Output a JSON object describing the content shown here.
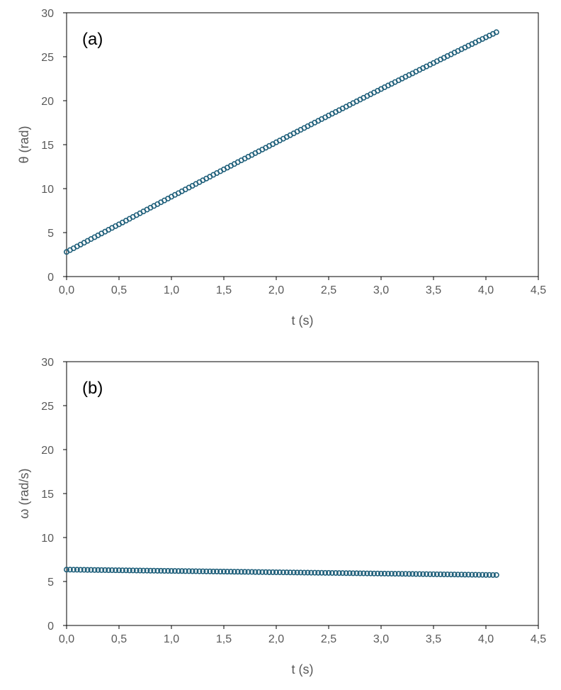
{
  "colors": {
    "marker": "#1f5f7a",
    "frame": "#000000",
    "text": "#595959"
  },
  "chart_data": [
    {
      "type": "scatter",
      "annotation": "(a)",
      "title": "",
      "xlabel": "t (s)",
      "ylabel": "θ (rad)",
      "xlim": [
        0,
        4.5
      ],
      "ylim": [
        0,
        30
      ],
      "xticks": [
        "0,0",
        "0,5",
        "1,0",
        "1,5",
        "2,0",
        "2,5",
        "3,0",
        "3,5",
        "4,0",
        "4,5"
      ],
      "yticks": [
        "0",
        "5",
        "10",
        "15",
        "20",
        "25",
        "30"
      ],
      "grid": false,
      "legend": "none",
      "series": [
        {
          "x": [
            0.0,
            0.033,
            0.067,
            0.1,
            0.133,
            0.167,
            0.2,
            0.233,
            0.267,
            0.3,
            0.333,
            0.367,
            0.4,
            0.433,
            0.467,
            0.5,
            0.533,
            0.567,
            0.6,
            0.633,
            0.667,
            0.7,
            0.733,
            0.767,
            0.8,
            0.833,
            0.867,
            0.9,
            0.933,
            0.967,
            1.0,
            1.033,
            1.067,
            1.1,
            1.133,
            1.167,
            1.2,
            1.233,
            1.267,
            1.3,
            1.333,
            1.367,
            1.4,
            1.433,
            1.467,
            1.5,
            1.533,
            1.567,
            1.6,
            1.633,
            1.667,
            1.7,
            1.733,
            1.767,
            1.8,
            1.833,
            1.867,
            1.9,
            1.933,
            1.967,
            2.0,
            2.033,
            2.067,
            2.1,
            2.133,
            2.167,
            2.2,
            2.233,
            2.267,
            2.3,
            2.333,
            2.367,
            2.4,
            2.433,
            2.467,
            2.5,
            2.533,
            2.567,
            2.6,
            2.633,
            2.667,
            2.7,
            2.733,
            2.767,
            2.8,
            2.833,
            2.867,
            2.9,
            2.933,
            2.967,
            3.0,
            3.033,
            3.067,
            3.1,
            3.133,
            3.167,
            3.2,
            3.233,
            3.267,
            3.3,
            3.333,
            3.367,
            3.4,
            3.433,
            3.467,
            3.5,
            3.533,
            3.567,
            3.6,
            3.633,
            3.667,
            3.7,
            3.733,
            3.767,
            3.8,
            3.833,
            3.867,
            3.9,
            3.933,
            3.967,
            4.0,
            4.033,
            4.067,
            4.1
          ],
          "y": [
            2.8,
            3.01,
            3.22,
            3.43,
            3.64,
            3.85,
            4.06,
            4.27,
            4.48,
            4.69,
            4.9,
            5.11,
            5.32,
            5.53,
            5.74,
            5.94,
            6.15,
            6.36,
            6.57,
            6.78,
            6.99,
            7.2,
            7.41,
            7.62,
            7.83,
            8.03,
            8.24,
            8.45,
            8.66,
            8.87,
            9.08,
            9.29,
            9.49,
            9.7,
            9.91,
            10.12,
            10.32,
            10.53,
            10.74,
            10.95,
            11.15,
            11.36,
            11.57,
            11.77,
            11.98,
            12.19,
            12.39,
            12.6,
            12.8,
            13.01,
            13.22,
            13.42,
            13.63,
            13.83,
            14.04,
            14.24,
            14.45,
            14.65,
            14.86,
            15.06,
            15.27,
            15.47,
            15.68,
            15.88,
            16.08,
            16.29,
            16.49,
            16.69,
            16.9,
            17.1,
            17.3,
            17.51,
            17.71,
            17.91,
            18.11,
            18.32,
            18.52,
            18.72,
            18.92,
            19.12,
            19.32,
            19.53,
            19.73,
            19.93,
            20.13,
            20.33,
            20.53,
            20.73,
            20.93,
            21.13,
            21.33,
            21.53,
            21.73,
            21.92,
            22.12,
            22.32,
            22.52,
            22.72,
            22.92,
            23.11,
            23.31,
            23.51,
            23.71,
            23.9,
            24.1,
            24.29,
            24.49,
            24.69,
            24.88,
            25.08,
            25.27,
            25.47,
            25.66,
            25.86,
            26.05,
            26.25,
            26.44,
            26.63,
            26.83,
            27.02,
            27.21,
            27.4,
            27.6,
            27.79
          ]
        }
      ]
    },
    {
      "type": "scatter",
      "annotation": "(b)",
      "title": "",
      "xlabel": "t (s)",
      "ylabel": "ω (rad/s)",
      "xlim": [
        0,
        4.5
      ],
      "ylim": [
        0,
        30
      ],
      "xticks": [
        "0,0",
        "0,5",
        "1,0",
        "1,5",
        "2,0",
        "2,5",
        "3,0",
        "3,5",
        "4,0",
        "4,5"
      ],
      "yticks": [
        "0",
        "5",
        "10",
        "15",
        "20",
        "25",
        "30"
      ],
      "grid": false,
      "legend": "none",
      "series": [
        {
          "x": [
            0.0,
            0.033,
            0.067,
            0.1,
            0.133,
            0.167,
            0.2,
            0.233,
            0.267,
            0.3,
            0.333,
            0.367,
            0.4,
            0.433,
            0.467,
            0.5,
            0.533,
            0.567,
            0.6,
            0.633,
            0.667,
            0.7,
            0.733,
            0.767,
            0.8,
            0.833,
            0.867,
            0.9,
            0.933,
            0.967,
            1.0,
            1.033,
            1.067,
            1.1,
            1.133,
            1.167,
            1.2,
            1.233,
            1.267,
            1.3,
            1.333,
            1.367,
            1.4,
            1.433,
            1.467,
            1.5,
            1.533,
            1.567,
            1.6,
            1.633,
            1.667,
            1.7,
            1.733,
            1.767,
            1.8,
            1.833,
            1.867,
            1.9,
            1.933,
            1.967,
            2.0,
            2.033,
            2.067,
            2.1,
            2.133,
            2.167,
            2.2,
            2.233,
            2.267,
            2.3,
            2.333,
            2.367,
            2.4,
            2.433,
            2.467,
            2.5,
            2.533,
            2.567,
            2.6,
            2.633,
            2.667,
            2.7,
            2.733,
            2.767,
            2.8,
            2.833,
            2.867,
            2.9,
            2.933,
            2.967,
            3.0,
            3.033,
            3.067,
            3.1,
            3.133,
            3.167,
            3.2,
            3.233,
            3.267,
            3.3,
            3.333,
            3.367,
            3.4,
            3.433,
            3.467,
            3.5,
            3.533,
            3.567,
            3.6,
            3.633,
            3.667,
            3.7,
            3.733,
            3.767,
            3.8,
            3.833,
            3.867,
            3.9,
            3.933,
            3.967,
            4.0,
            4.033,
            4.067,
            4.1
          ],
          "y": [
            6.35,
            6.35,
            6.34,
            6.34,
            6.33,
            6.33,
            6.32,
            6.32,
            6.31,
            6.31,
            6.3,
            6.3,
            6.29,
            6.29,
            6.28,
            6.28,
            6.27,
            6.27,
            6.26,
            6.26,
            6.25,
            6.25,
            6.24,
            6.24,
            6.23,
            6.23,
            6.22,
            6.22,
            6.21,
            6.21,
            6.2,
            6.2,
            6.19,
            6.19,
            6.18,
            6.18,
            6.17,
            6.17,
            6.16,
            6.16,
            6.15,
            6.15,
            6.14,
            6.14,
            6.13,
            6.13,
            6.12,
            6.12,
            6.11,
            6.11,
            6.1,
            6.1,
            6.09,
            6.09,
            6.08,
            6.08,
            6.07,
            6.07,
            6.06,
            6.06,
            6.05,
            6.05,
            6.04,
            6.04,
            6.03,
            6.03,
            6.02,
            6.02,
            6.01,
            6.01,
            6.0,
            6.0,
            5.99,
            5.99,
            5.98,
            5.98,
            5.97,
            5.97,
            5.96,
            5.96,
            5.95,
            5.95,
            5.94,
            5.94,
            5.93,
            5.93,
            5.92,
            5.92,
            5.91,
            5.91,
            5.9,
            5.9,
            5.89,
            5.89,
            5.88,
            5.88,
            5.87,
            5.87,
            5.86,
            5.86,
            5.85,
            5.85,
            5.84,
            5.84,
            5.83,
            5.83,
            5.82,
            5.82,
            5.81,
            5.81,
            5.8,
            5.8,
            5.79,
            5.79,
            5.78,
            5.78,
            5.77,
            5.77,
            5.76,
            5.76,
            5.75,
            5.75,
            5.74,
            5.74
          ]
        }
      ]
    }
  ]
}
